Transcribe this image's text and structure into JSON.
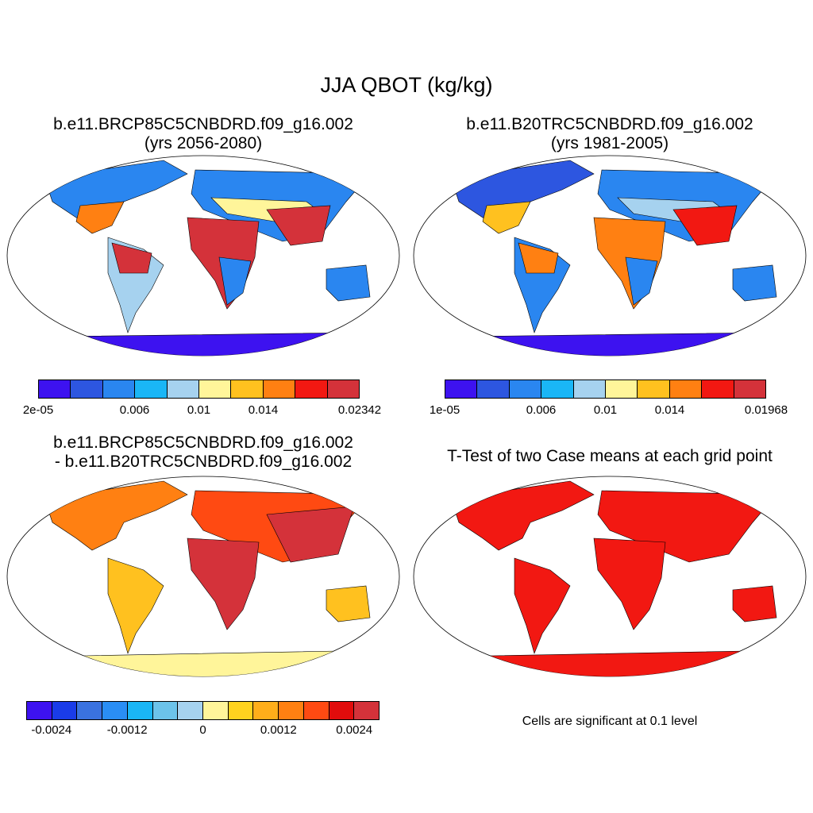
{
  "title": "JJA QBOT (kg/kg)",
  "panels": {
    "case": {
      "title_line1": "b.e11.BRCP85C5CNBDRD.f09_g16.002",
      "title_line2": "(yrs 2056-2080)",
      "colorbar": {
        "colors": [
          "#3d12f0",
          "#2d56e0",
          "#2a86f0",
          "#1ab6f6",
          "#a6d2ef",
          "#fff59a",
          "#ffc11f",
          "#ff8012",
          "#f21812",
          "#d4323a"
        ],
        "tick_labels": [
          "2e-05",
          "0.006",
          "0.01",
          "0.014",
          "0.02342"
        ]
      }
    },
    "control": {
      "title_line1": "b.e11.B20TRC5CNBDRD.f09_g16.002",
      "title_line2": "(yrs 1981-2005)",
      "colorbar": {
        "colors": [
          "#3d12f0",
          "#2d56e0",
          "#2a86f0",
          "#1ab6f6",
          "#a6d2ef",
          "#fff59a",
          "#ffc11f",
          "#ff8012",
          "#f21812",
          "#d4323a"
        ],
        "tick_labels": [
          "1e-05",
          "0.006",
          "0.01",
          "0.014",
          "0.01968"
        ]
      }
    },
    "diff": {
      "title_line1": "b.e11.BRCP85C5CNBDRD.f09_g16.002",
      "title_line2": "- b.e11.B20TRC5CNBDRD.f09_g16.002",
      "colorbar": {
        "colors": [
          "#3d12f0",
          "#1a3ce8",
          "#3a72e0",
          "#2a8ef5",
          "#1ab6f6",
          "#6cc3ea",
          "#a6d2ef",
          "#fff59a",
          "#ffd21f",
          "#ffae1a",
          "#ff8012",
          "#ff4a12",
          "#e20c0c",
          "#d4323a"
        ],
        "tick_labels": [
          "-0.0024",
          "-0.0012",
          "0",
          "0.0012",
          "0.0024"
        ]
      }
    },
    "ttest": {
      "title": "T-Test of two Case means at each grid point",
      "note": "Cells are significant at 0.1 level"
    }
  }
}
